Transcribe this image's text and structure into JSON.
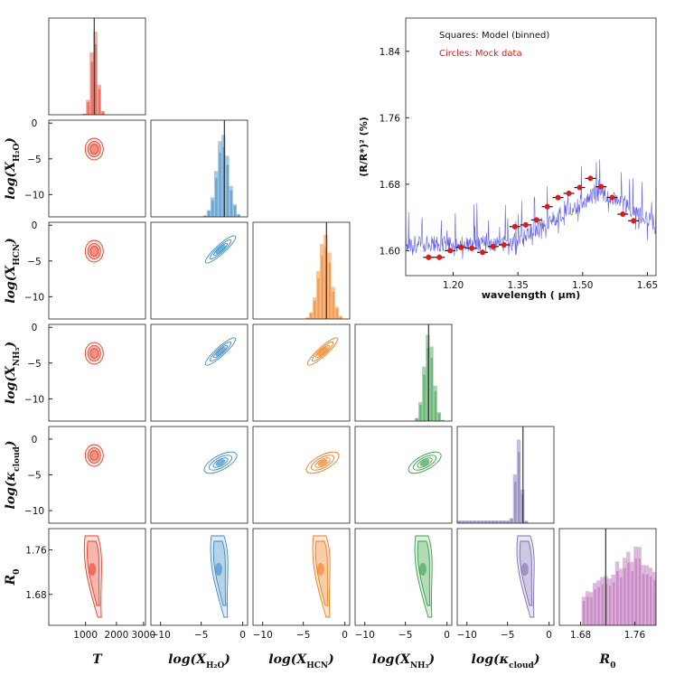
{
  "chart_data": [
    {
      "type": "corner",
      "parameters": [
        {
          "key": "T",
          "label": "T",
          "sub": "",
          "ticks": [
            "1000",
            "2000",
            "3000"
          ],
          "truth": 1420,
          "range": [
            0,
            3000
          ]
        },
        {
          "key": "h2o",
          "label": "log(X",
          "sub": "H₂O",
          "close": ")",
          "ticks": [
            "−10",
            "−5",
            "0"
          ],
          "truth": -3.0,
          "range": [
            -12,
            0
          ]
        },
        {
          "key": "hcn",
          "label": "log(X",
          "sub": "HCN",
          "close": ")",
          "ticks": [
            "−10",
            "−5",
            "0"
          ],
          "truth": -3.0,
          "range": [
            -12,
            0
          ]
        },
        {
          "key": "nh3",
          "label": "log(X",
          "sub": "NH₃",
          "close": ")",
          "ticks": [
            "−10",
            "−5",
            "0"
          ],
          "truth": -3.0,
          "range": [
            -12,
            0
          ]
        },
        {
          "key": "kcloud",
          "label": "log(κ",
          "sub": "cloud",
          "close": ")",
          "ticks": [
            "−10",
            "−5",
            "0"
          ],
          "truth": -2.0,
          "range": [
            -12,
            2
          ]
        },
        {
          "key": "R0",
          "label": "R",
          "sub": "0",
          "close": "",
          "ticks": [
            "1.68",
            "1.76"
          ],
          "truth": 1.71,
          "range": [
            1.62,
            1.82
          ]
        }
      ],
      "y_ticks": {
        "log": [
          "0",
          "−5",
          "−10"
        ],
        "kcloud": [
          "0",
          "−5",
          "−10"
        ],
        "R0": [
          "1.76",
          "1.68"
        ]
      },
      "colors": {
        "T": "#e8402a",
        "h2o": "#3c8ac4",
        "hcn": "#ee7d1e",
        "nh3": "#3aa04a",
        "kcloud": "#7e6eb4",
        "R0": "#b866b4"
      }
    },
    {
      "type": "line",
      "title": "",
      "xlabel": "wavelength ( μm)",
      "ylabel": "(R/R*)² (%)",
      "x_ticks": [
        "1.20",
        "1.35",
        "1.50",
        "1.65"
      ],
      "y_ticks": [
        "1.60",
        "1.68",
        "1.76",
        "1.84"
      ],
      "xlim": [
        1.09,
        1.67
      ],
      "ylim": [
        1.57,
        1.88
      ],
      "legend": {
        "squares": "Squares: Model (binned)",
        "circles": "Circles: Mock data"
      },
      "binned_x": [
        1.143,
        1.168,
        1.193,
        1.218,
        1.243,
        1.268,
        1.293,
        1.318,
        1.343,
        1.368,
        1.393,
        1.418,
        1.443,
        1.468,
        1.493,
        1.518,
        1.543,
        1.568,
        1.593,
        1.618
      ],
      "binned_y": [
        1.592,
        1.592,
        1.6,
        1.604,
        1.603,
        1.598,
        1.605,
        1.607,
        1.629,
        1.631,
        1.637,
        1.653,
        1.664,
        1.669,
        1.676,
        1.687,
        1.677,
        1.664,
        1.644,
        1.636
      ],
      "colors": {
        "model": "#2a2ae6",
        "mock": "#e01818",
        "binned": "#111111"
      }
    }
  ]
}
